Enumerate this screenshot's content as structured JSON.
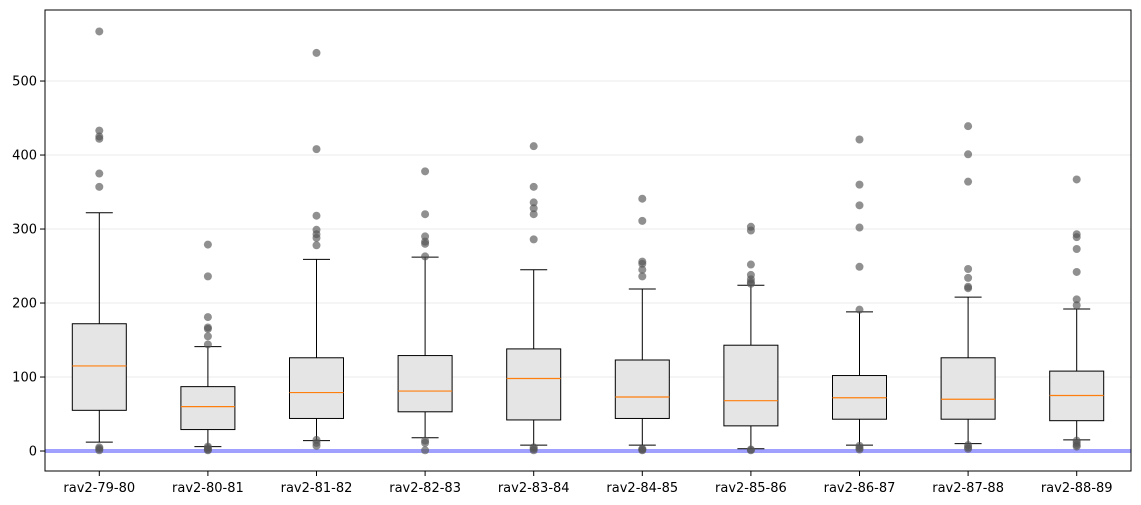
{
  "chart_data": {
    "type": "boxplot",
    "title": "",
    "xlabel": "",
    "ylabel": "",
    "ylim": [
      -27,
      596
    ],
    "yticks": [
      0,
      100,
      200,
      300,
      400,
      500
    ],
    "ytick_labels": [
      "0",
      "100",
      "200",
      "300",
      "400",
      "500"
    ],
    "grid": "horizontal",
    "reference_line": {
      "y": 0,
      "color": "#a0a0ff"
    },
    "colors": {
      "box_fill": "#e5e5e5",
      "median": "#ff7f0e",
      "outlier": "#555555",
      "grid": "#ebebeb"
    },
    "categories": [
      "rav2-79-80",
      "rav2-80-81",
      "rav2-81-82",
      "rav2-82-83",
      "rav2-83-84",
      "rav2-84-85",
      "rav2-85-86",
      "rav2-86-87",
      "rav2-87-88",
      "rav2-88-89"
    ],
    "boxes": [
      {
        "label": "rav2-79-80",
        "whislo": 12,
        "q1": 55,
        "med": 115,
        "q3": 172,
        "whishi": 322,
        "fliers": [
          567,
          433,
          425,
          422,
          375,
          357,
          5,
          3,
          1
        ]
      },
      {
        "label": "rav2-80-81",
        "whislo": 6,
        "q1": 29,
        "med": 60,
        "q3": 87,
        "whishi": 141,
        "fliers": [
          279,
          236,
          181,
          167,
          165,
          155,
          144,
          6,
          4,
          2,
          1
        ]
      },
      {
        "label": "rav2-81-82",
        "whislo": 14,
        "q1": 44,
        "med": 79,
        "q3": 126,
        "whishi": 259,
        "fliers": [
          538,
          408,
          318,
          299,
          293,
          288,
          278,
          15,
          11,
          7
        ]
      },
      {
        "label": "rav2-82-83",
        "whislo": 18,
        "q1": 53,
        "med": 81,
        "q3": 129,
        "whishi": 262,
        "fliers": [
          378,
          320,
          290,
          283,
          280,
          263,
          14,
          11,
          1
        ]
      },
      {
        "label": "rav2-83-84",
        "whislo": 8,
        "q1": 42,
        "med": 98,
        "q3": 138,
        "whishi": 245,
        "fliers": [
          412,
          357,
          336,
          328,
          320,
          286,
          5,
          3,
          1
        ]
      },
      {
        "label": "rav2-84-85",
        "whislo": 8,
        "q1": 44,
        "med": 73,
        "q3": 123,
        "whishi": 219,
        "fliers": [
          341,
          311,
          256,
          253,
          245,
          236,
          3,
          2,
          1
        ]
      },
      {
        "label": "rav2-85-86",
        "whislo": 3,
        "q1": 34,
        "med": 68,
        "q3": 143,
        "whishi": 224,
        "fliers": [
          303,
          298,
          252,
          238,
          232,
          228,
          226,
          2,
          1
        ]
      },
      {
        "label": "rav2-86-87",
        "whislo": 8,
        "q1": 43,
        "med": 72,
        "q3": 102,
        "whishi": 188,
        "fliers": [
          421,
          360,
          332,
          302,
          249,
          191,
          7,
          4,
          2
        ]
      },
      {
        "label": "rav2-87-88",
        "whislo": 10,
        "q1": 43,
        "med": 70,
        "q3": 126,
        "whishi": 208,
        "fliers": [
          439,
          401,
          364,
          246,
          234,
          222,
          220,
          8,
          5,
          3
        ]
      },
      {
        "label": "rav2-88-89",
        "whislo": 15,
        "q1": 41,
        "med": 75,
        "q3": 108,
        "whishi": 192,
        "fliers": [
          367,
          293,
          289,
          273,
          242,
          205,
          197,
          14,
          11,
          8,
          6
        ]
      }
    ]
  }
}
